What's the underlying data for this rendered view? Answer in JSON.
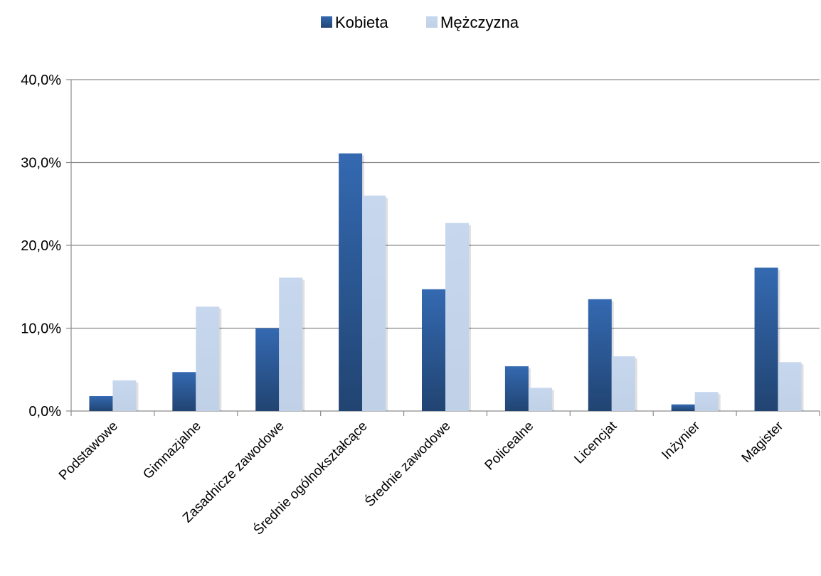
{
  "chart_data": {
    "type": "bar",
    "title": "",
    "xlabel": "",
    "ylabel": "",
    "categories": [
      "Podstawowe",
      "Gimnazjalne",
      "Zasadnicze zawodowe",
      "Średnie ogólnokształcące",
      "Średnie zawodowe",
      "Policealne",
      "Licencjat",
      "Inżynier",
      "Magister"
    ],
    "series": [
      {
        "name": "Kobieta",
        "color": "#2E5E9E",
        "values": [
          1.8,
          4.7,
          10.0,
          31.1,
          14.7,
          5.4,
          13.5,
          0.8,
          17.3
        ]
      },
      {
        "name": "Mężczyzna",
        "color": "#C6D7EE",
        "values": [
          3.7,
          12.6,
          16.1,
          26.0,
          22.7,
          2.8,
          6.6,
          2.3,
          5.9
        ]
      }
    ],
    "ylim": [
      0,
      40
    ],
    "yticks": [
      {
        "value": 0,
        "label": "0,0%"
      },
      {
        "value": 10,
        "label": "10,0%"
      },
      {
        "value": 20,
        "label": "20,0%"
      },
      {
        "value": 30,
        "label": "30,0%"
      },
      {
        "value": 40,
        "label": "40,0%"
      }
    ],
    "grid": true,
    "legend_position": "top-center"
  }
}
